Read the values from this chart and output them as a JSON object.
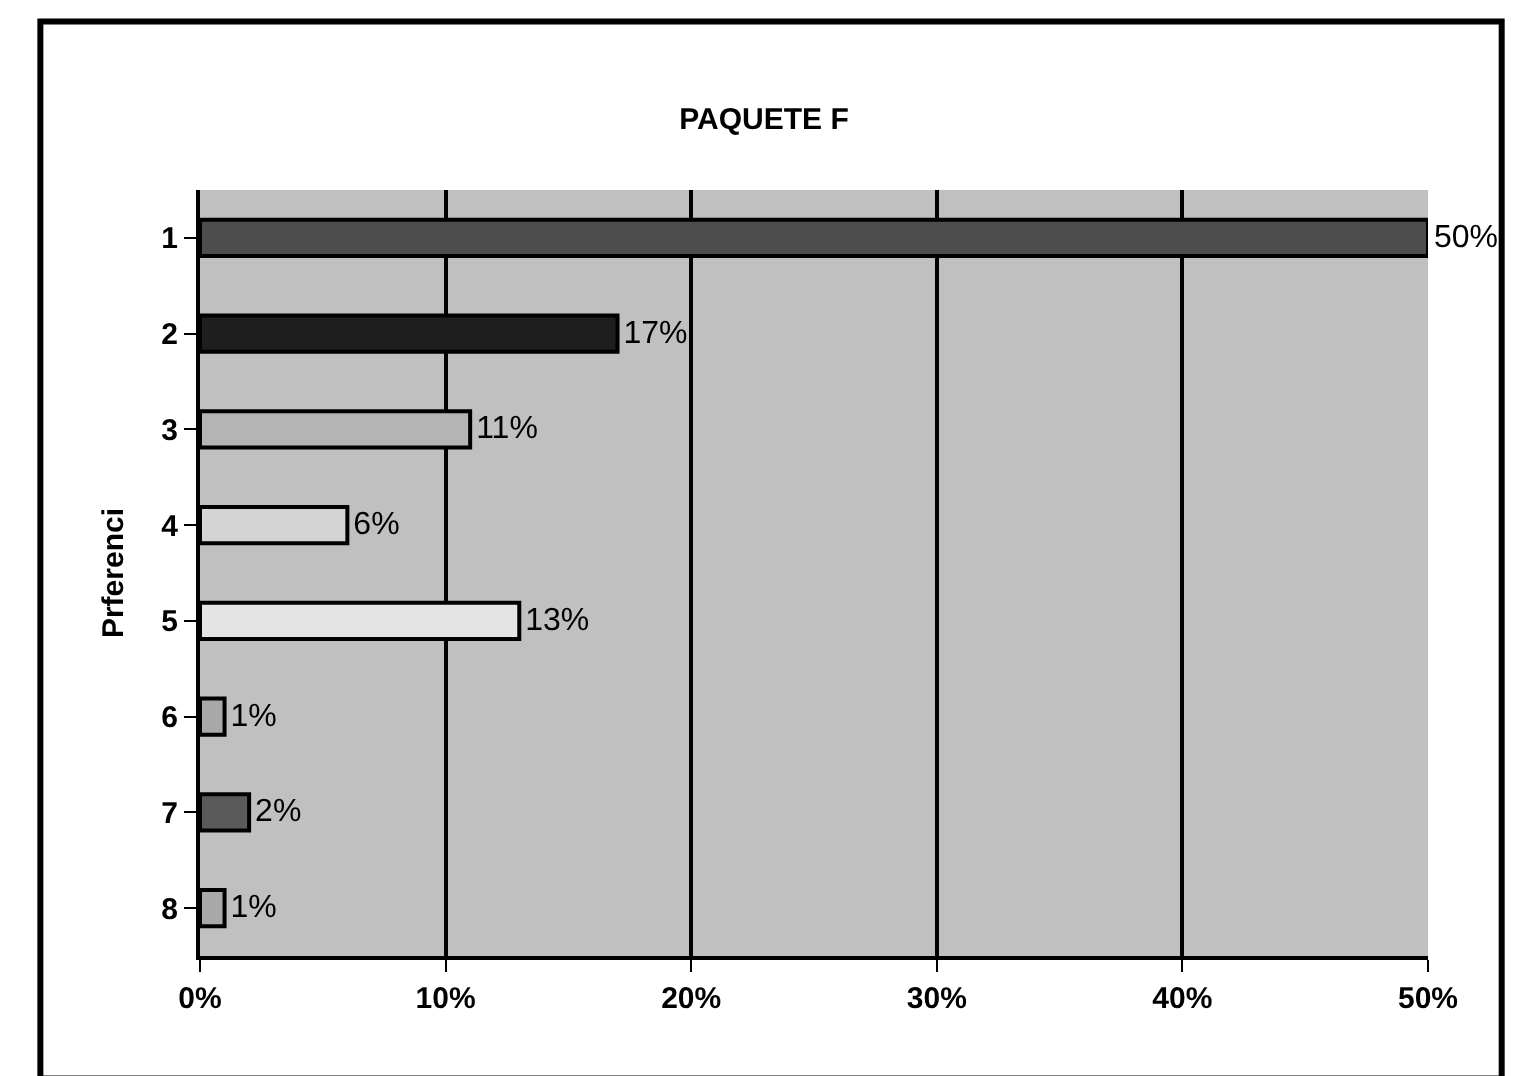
{
  "chart_data": {
    "type": "bar",
    "orientation": "horizontal",
    "title": "PAQUETE F",
    "ylabel": "Prferenci",
    "categories": [
      "1",
      "2",
      "3",
      "4",
      "5",
      "6",
      "7",
      "8"
    ],
    "values": [
      50,
      17,
      11,
      6,
      13,
      1,
      2,
      1
    ],
    "value_labels": [
      "50%",
      "17%",
      "11%",
      "6%",
      "13%",
      "1%",
      "2%",
      "1%"
    ],
    "colors": [
      "#4d4d4d",
      "#1e1e1e",
      "#b4b4b4",
      "#d4d4d4",
      "#e4e4e4",
      "#a8a8a8",
      "#5a5a5a",
      "#a8a8a8"
    ],
    "xlim": [
      0,
      50
    ],
    "xticks": [
      {
        "value": 0,
        "label": "0%"
      },
      {
        "value": 10,
        "label": "10%"
      },
      {
        "value": 20,
        "label": "20%"
      },
      {
        "value": 30,
        "label": "30%"
      },
      {
        "value": 40,
        "label": "40%"
      },
      {
        "value": 50,
        "label": "50%"
      }
    ],
    "grid": "x",
    "legend": false
  }
}
